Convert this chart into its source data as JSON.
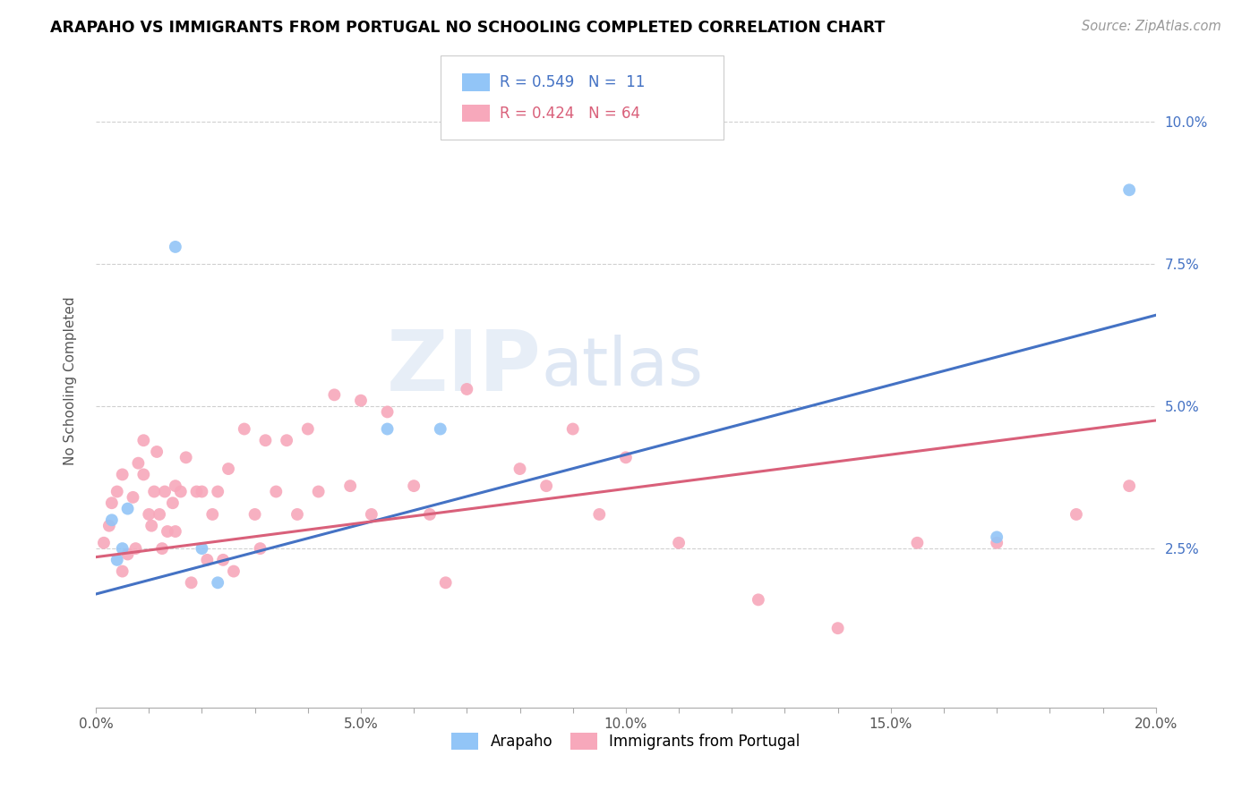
{
  "title": "ARAPAHO VS IMMIGRANTS FROM PORTUGAL NO SCHOOLING COMPLETED CORRELATION CHART",
  "source": "Source: ZipAtlas.com",
  "xlabel_ticks": [
    "0.0%",
    "",
    "",
    "",
    "",
    "5.0%",
    "",
    "",
    "",
    "",
    "10.0%",
    "",
    "",
    "",
    "",
    "15.0%",
    "",
    "",
    "",
    "",
    "20.0%"
  ],
  "xlabel_vals": [
    0,
    1,
    2,
    3,
    4,
    5,
    6,
    7,
    8,
    9,
    10,
    11,
    12,
    13,
    14,
    15,
    16,
    17,
    18,
    19,
    20
  ],
  "ylabel": "No Schooling Completed",
  "xlim": [
    0.0,
    20.0
  ],
  "ylim": [
    -0.3,
    11.2
  ],
  "yticks": [
    0.0,
    2.5,
    5.0,
    7.5,
    10.0
  ],
  "ytick_labels": [
    "",
    "2.5%",
    "5.0%",
    "7.5%",
    "10.0%"
  ],
  "blue_label": "Arapaho",
  "pink_label": "Immigrants from Portugal",
  "blue_R": "0.549",
  "blue_N": "11",
  "pink_R": "0.424",
  "pink_N": "64",
  "blue_color": "#92C5F7",
  "pink_color": "#F7A8BB",
  "blue_line_color": "#4472C4",
  "pink_line_color": "#D9607A",
  "watermark_zip": "ZIP",
  "watermark_atlas": "atlas",
  "blue_scatter_x": [
    0.3,
    0.4,
    0.5,
    0.6,
    1.5,
    2.0,
    2.3,
    5.5,
    6.5,
    17.0,
    19.5
  ],
  "blue_scatter_y": [
    3.0,
    2.3,
    2.5,
    3.2,
    7.8,
    2.5,
    1.9,
    4.6,
    4.6,
    2.7,
    8.8
  ],
  "pink_scatter_x": [
    0.15,
    0.25,
    0.3,
    0.4,
    0.5,
    0.5,
    0.6,
    0.7,
    0.75,
    0.8,
    0.9,
    0.9,
    1.0,
    1.05,
    1.1,
    1.15,
    1.2,
    1.25,
    1.3,
    1.35,
    1.45,
    1.5,
    1.5,
    1.6,
    1.7,
    1.8,
    1.9,
    2.0,
    2.1,
    2.2,
    2.3,
    2.4,
    2.5,
    2.6,
    2.8,
    3.0,
    3.1,
    3.2,
    3.4,
    3.6,
    3.8,
    4.0,
    4.2,
    4.5,
    4.8,
    5.0,
    5.2,
    5.5,
    6.0,
    6.3,
    6.6,
    7.0,
    8.0,
    8.5,
    9.0,
    9.5,
    10.0,
    11.0,
    12.5,
    14.0,
    15.5,
    17.0,
    18.5,
    19.5
  ],
  "pink_scatter_y": [
    2.6,
    2.9,
    3.3,
    3.5,
    2.1,
    3.8,
    2.4,
    3.4,
    2.5,
    4.0,
    4.4,
    3.8,
    3.1,
    2.9,
    3.5,
    4.2,
    3.1,
    2.5,
    3.5,
    2.8,
    3.3,
    3.6,
    2.8,
    3.5,
    4.1,
    1.9,
    3.5,
    3.5,
    2.3,
    3.1,
    3.5,
    2.3,
    3.9,
    2.1,
    4.6,
    3.1,
    2.5,
    4.4,
    3.5,
    4.4,
    3.1,
    4.6,
    3.5,
    5.2,
    3.6,
    5.1,
    3.1,
    4.9,
    3.6,
    3.1,
    1.9,
    5.3,
    3.9,
    3.6,
    4.6,
    3.1,
    4.1,
    2.6,
    1.6,
    1.1,
    2.6,
    2.6,
    3.1,
    3.6
  ],
  "blue_trendline_x": [
    0.0,
    20.0
  ],
  "blue_trendline_y": [
    1.7,
    6.6
  ],
  "pink_trendline_x": [
    0.0,
    20.0
  ],
  "pink_trendline_y": [
    2.35,
    4.75
  ]
}
